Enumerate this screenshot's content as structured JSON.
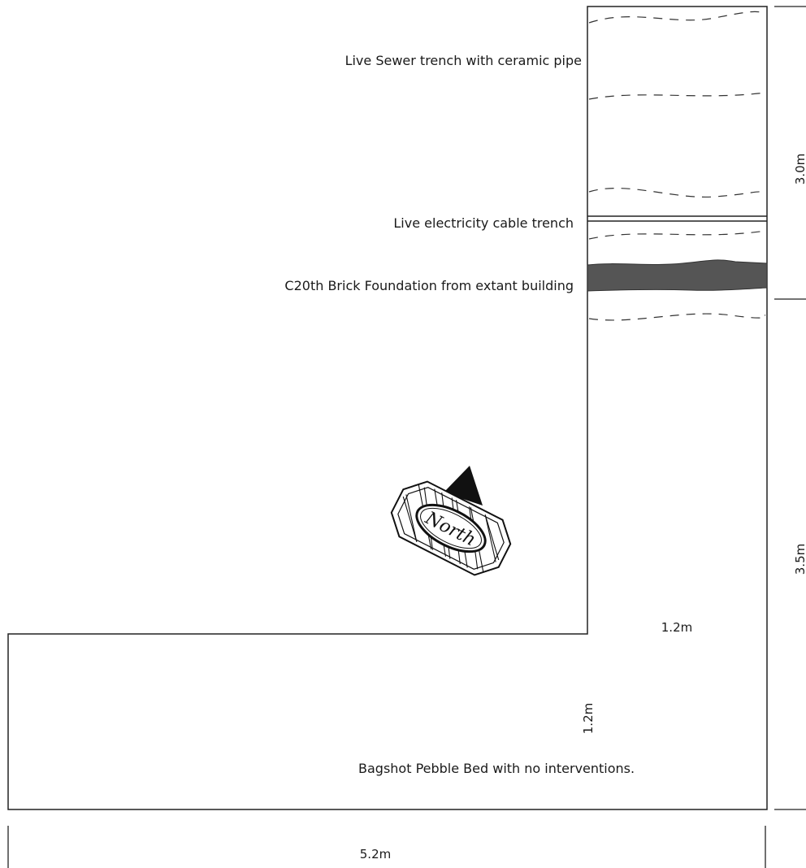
{
  "labels": {
    "sewer": "Live Sewer trench with ceramic pipe",
    "electricity": "Live electricity cable trench",
    "brick": "C20th Brick Foundation from extant building",
    "pebble": "Bagshot Pebble Bed with no interventions."
  },
  "dimensions": {
    "upper_right": "3.0m",
    "lower_right": "3.5m",
    "trench_width": "1.2m",
    "lower_height": "1.2m",
    "bottom_width": "5.2m"
  },
  "north_arrow": {
    "label": "North"
  },
  "colors": {
    "outline": "#222222",
    "brick_fill": "#555555",
    "background": "#ffffff"
  }
}
